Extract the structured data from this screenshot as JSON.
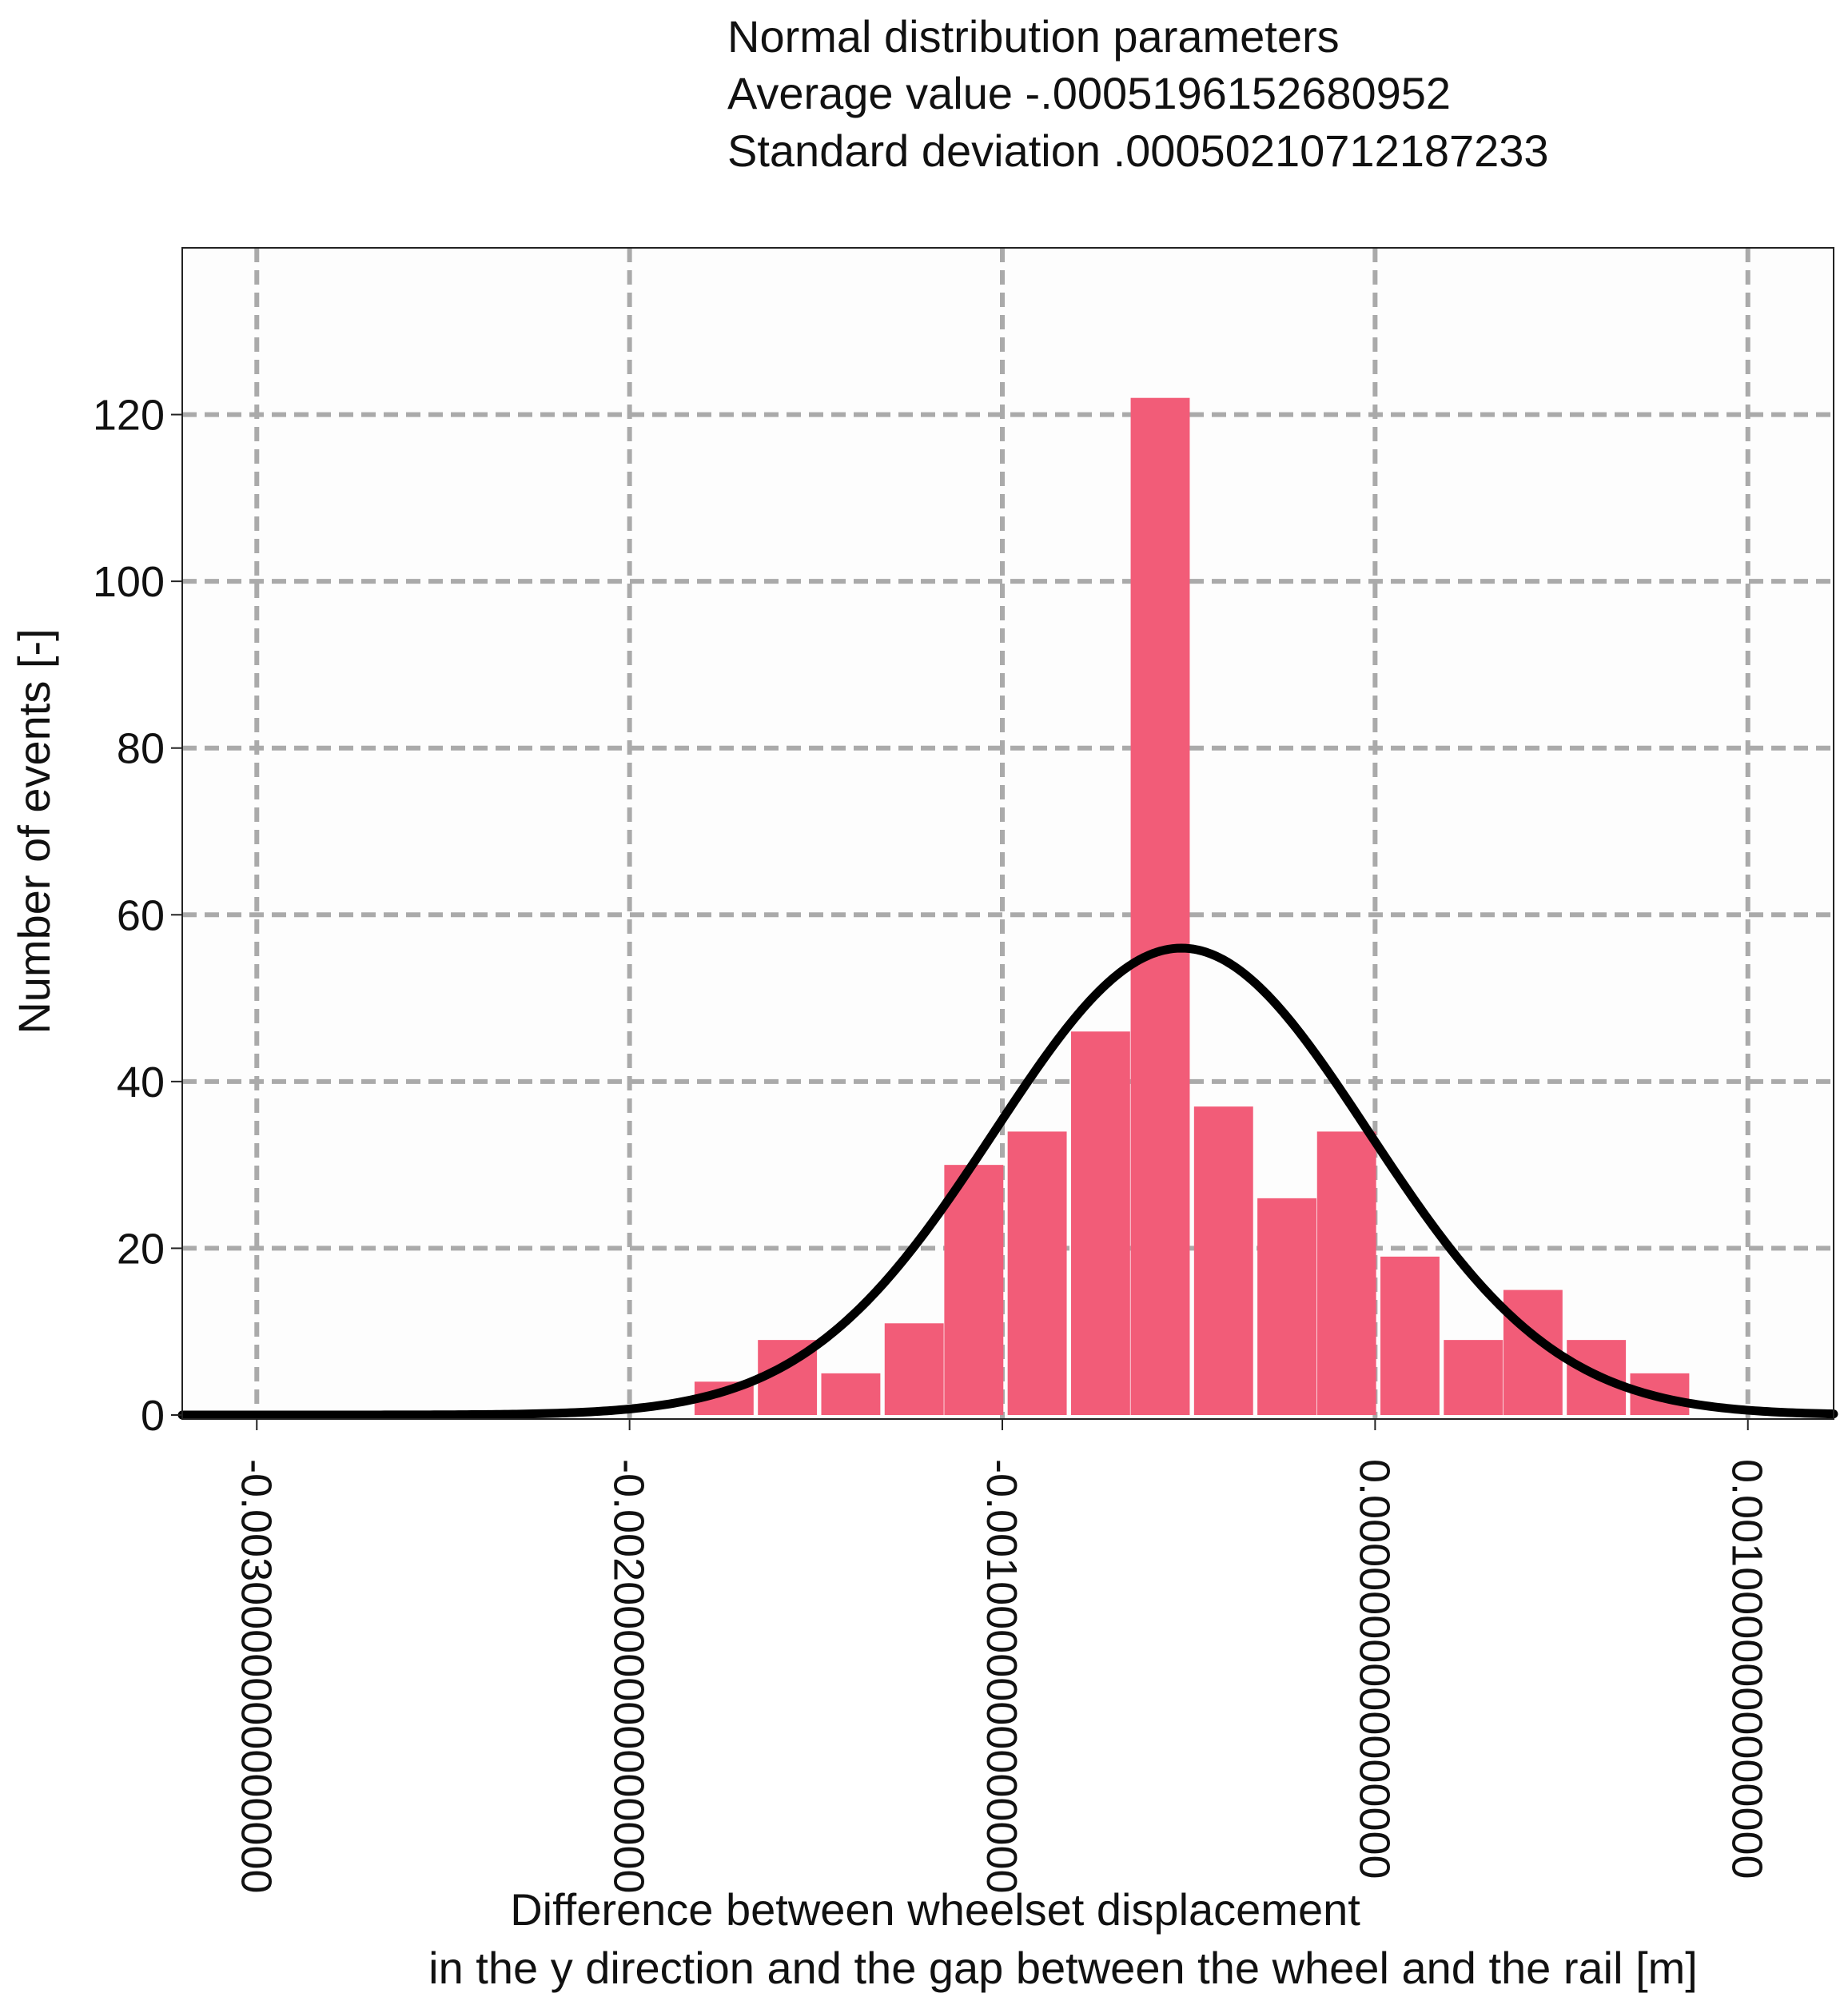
{
  "info": {
    "line1": "Normal distribution parameters",
    "line2": "Average value -.0005196152680952",
    "line3": "Standard deviation .00050210712187233"
  },
  "colors": {
    "bar": "#f25c78",
    "curve": "#000000",
    "grid": "#aaaaaa",
    "plot_bg": "#fdfdfd",
    "frame": "#222222"
  },
  "chart_data": {
    "type": "bar",
    "title": "",
    "xlabel_line1": "Difference between wheelset displacement",
    "xlabel_line2": "in the y direction and the gap between the wheel and the rail  [m]",
    "ylabel": "Number of events [-]",
    "xlim": [
      -0.0032,
      0.00123
    ],
    "ylim": [
      0,
      140
    ],
    "x_ticks": [
      -0.003,
      -0.002,
      -0.001,
      0.0,
      0.001
    ],
    "x_tick_labels": [
      "-0.0030000000000000",
      "-0.0020000000000000",
      "-0.0010000000000000",
      "0.0000000000000000",
      "0.0010000000000000"
    ],
    "y_ticks": [
      0,
      20,
      40,
      60,
      80,
      100,
      120
    ],
    "y_tick_labels": [
      "0",
      "20",
      "40",
      "60",
      "80",
      "100",
      "120"
    ],
    "grid": true,
    "bin_width": 0.000167,
    "series": [
      {
        "name": "histogram",
        "type": "bar",
        "bin_starts": [
          -0.00183,
          -0.00166,
          -0.00149,
          -0.00132,
          -0.00116,
          -0.00099,
          -0.00082,
          -0.00066,
          -0.00049,
          -0.00032,
          -0.00016,
          1e-05,
          0.00018,
          0.00034,
          0.00051,
          0.00068
        ],
        "values": [
          4,
          9,
          5,
          11,
          30,
          34,
          46,
          122,
          37,
          26,
          34,
          19,
          9,
          15,
          9,
          5
        ]
      },
      {
        "name": "normal fit",
        "type": "line",
        "mean": -0.0005196152680952,
        "std": 0.00050210712187233,
        "peak": 56,
        "x_range": [
          -0.0032,
          0.00123
        ]
      }
    ]
  }
}
